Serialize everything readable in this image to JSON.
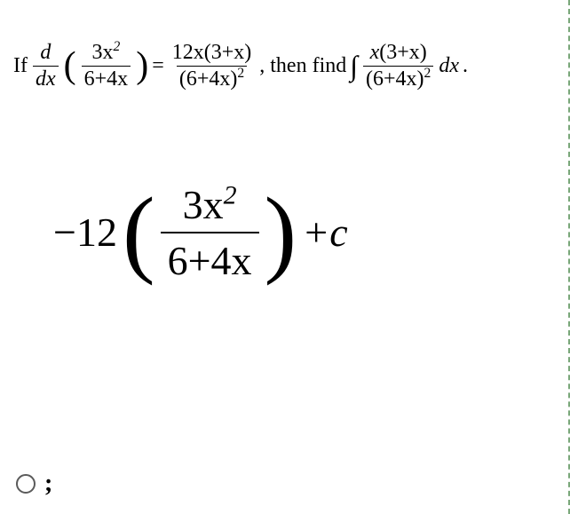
{
  "question": {
    "prefix": "If",
    "deriv_d": "d",
    "deriv_dx": "dx",
    "lhs_num": "3x",
    "lhs_num_sup": "2",
    "lhs_den": "6+4x",
    "equals": "=",
    "rhs_num_coef": "12x",
    "rhs_num_paren": "(3+x)",
    "rhs_den_base": "(6+4x)",
    "rhs_den_sup": "2",
    "mid_text": ", then find",
    "int_num_x": "x",
    "int_num_paren": "(3+x)",
    "int_den_base": "(6+4x)",
    "int_den_sup": "2",
    "dx": "dx",
    "period": "."
  },
  "answer": {
    "coef": "−12",
    "frac_num_base": "3x",
    "frac_num_sup": "2",
    "frac_den": "6+4x",
    "plus_c": "+c"
  },
  "option": {
    "label": ";"
  },
  "colors": {
    "text": "#000000",
    "background": "#ffffff",
    "border_dash": "#7ba87b",
    "radio_border": "#5a5a5a"
  },
  "typography": {
    "question_fontsize": 24,
    "answer_fontsize": 46,
    "font_family": "Times New Roman"
  }
}
